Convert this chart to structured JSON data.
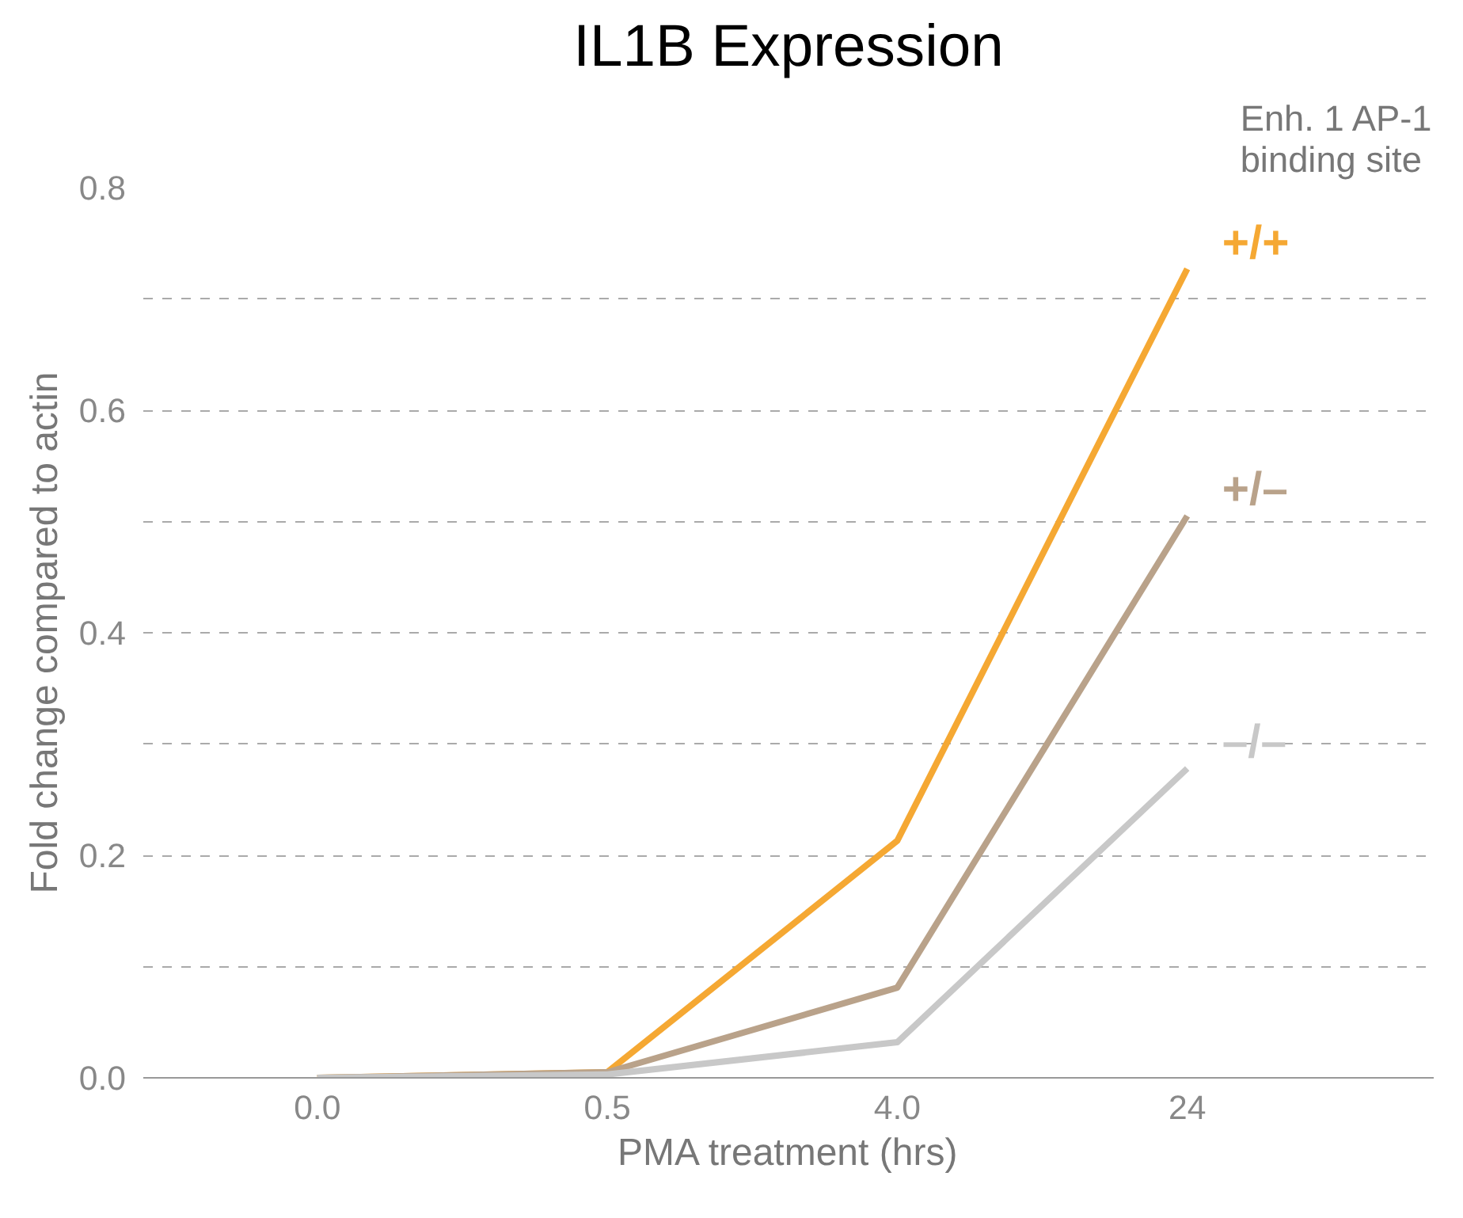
{
  "chart_data": {
    "type": "line",
    "title": "IL1B Expression",
    "xlabel": "PMA treatment (hrs)",
    "ylabel": "Fold change compared to actin",
    "legend_title": "Enh. 1 AP-1 binding site",
    "categories": [
      "0.0",
      "0.5",
      "4.0",
      "24"
    ],
    "series": [
      {
        "name": "+/+",
        "color": "#f5a833",
        "values": [
          0.0,
          0.005,
          0.213,
          0.727
        ]
      },
      {
        "name": "+/–",
        "color": "#b9a28a",
        "values": [
          0.0,
          0.005,
          0.081,
          0.505
        ]
      },
      {
        "name": "–/–",
        "color": "#c8c8c8",
        "values": [
          0.0,
          0.003,
          0.032,
          0.278
        ]
      }
    ],
    "ylim": [
      0,
      0.8
    ],
    "yticks": [
      {
        "value": 0,
        "label": "0.0"
      },
      {
        "value": 0.1,
        "label": null
      },
      {
        "value": 0.2,
        "label": "0.2"
      },
      {
        "value": 0.3,
        "label": null
      },
      {
        "value": 0.4,
        "label": "0.4"
      },
      {
        "value": 0.5,
        "label": null
      },
      {
        "value": 0.6,
        "label": "0.6"
      },
      {
        "value": 0.7,
        "label": null
      },
      {
        "value": 0.8,
        "label": "0.8"
      }
    ],
    "grid": "y",
    "marker": "none",
    "line_style": "solid"
  }
}
